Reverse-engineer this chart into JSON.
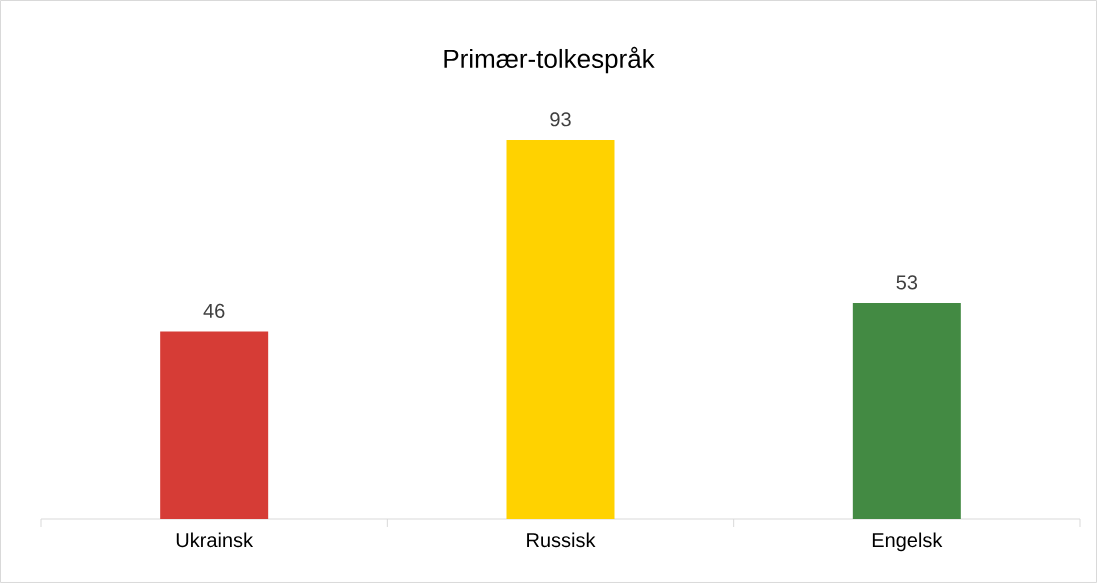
{
  "chart_data": {
    "type": "bar",
    "title": "Primær-tolkespråk",
    "categories": [
      "Ukrainsk",
      "Russisk",
      "Engelsk"
    ],
    "values": [
      46,
      93,
      53
    ],
    "colors": [
      "#d63c36",
      "#ffd200",
      "#438a43"
    ],
    "data_labels": true
  }
}
